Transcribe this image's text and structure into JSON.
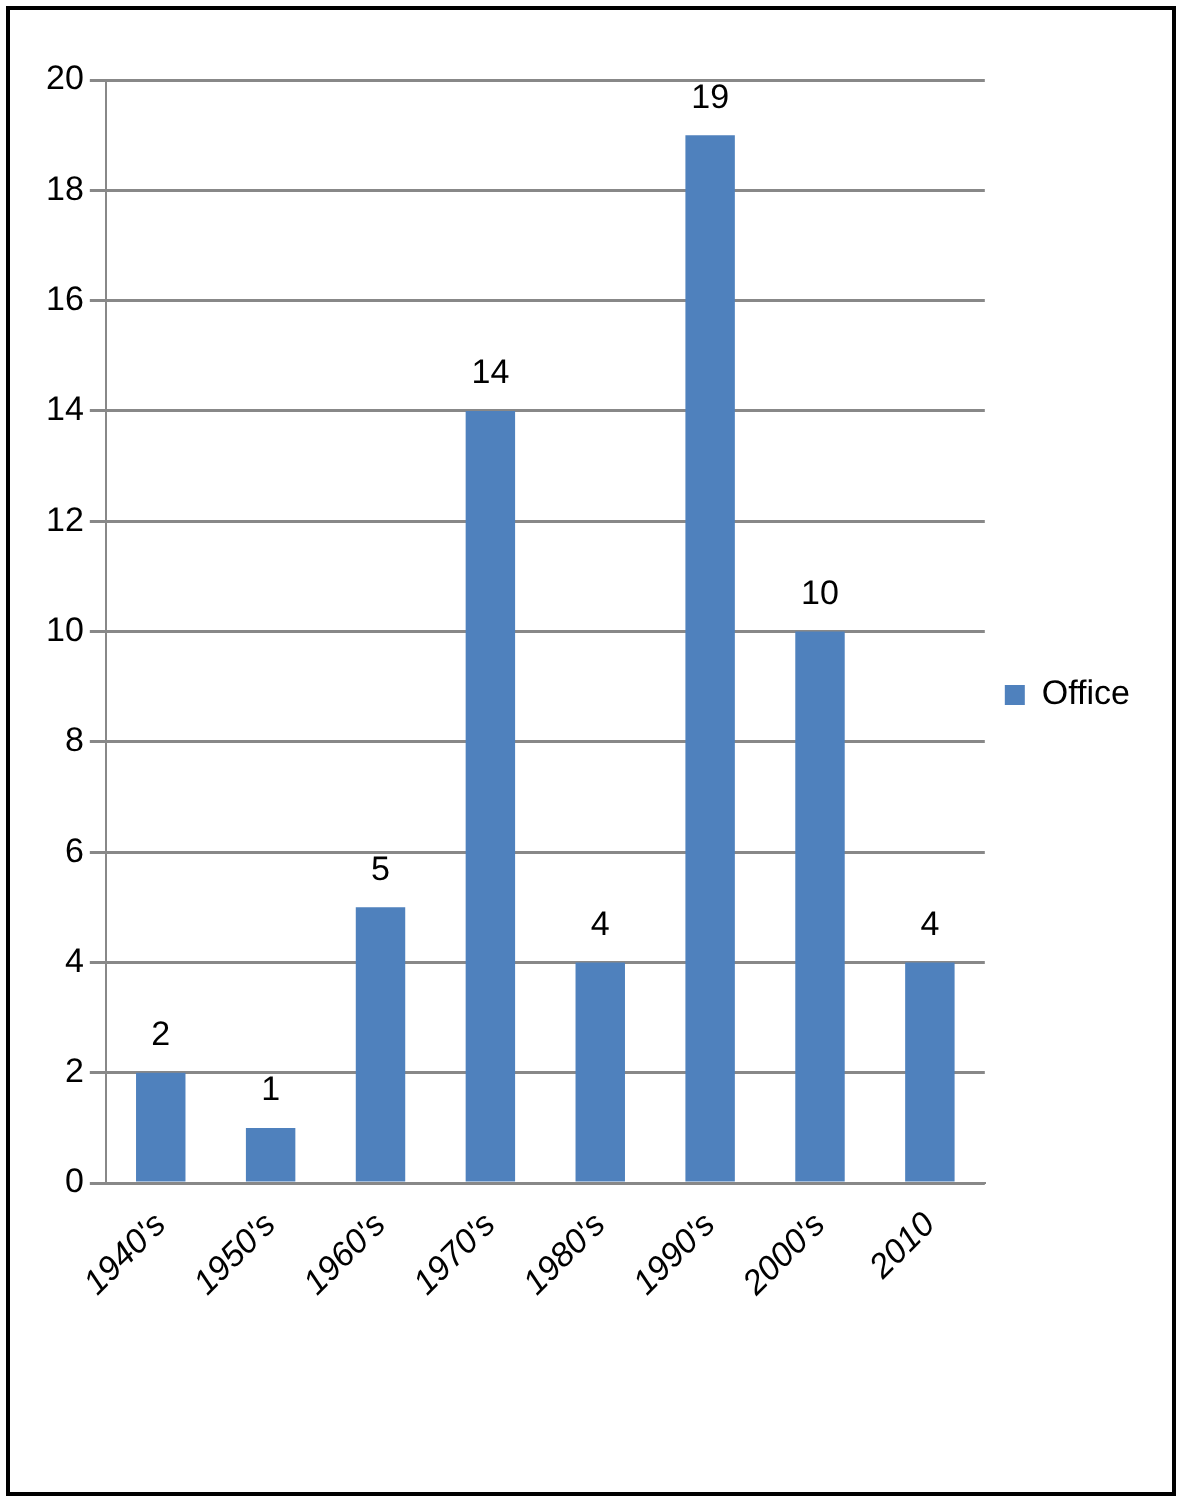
{
  "chart_data": {
    "type": "bar",
    "categories": [
      "1940's",
      "1950's",
      "1960's",
      "1970's",
      "1980's",
      "1990's",
      "2000's",
      "2010"
    ],
    "series": [
      {
        "name": "Office",
        "color": "#4f81bd",
        "values": [
          2,
          1,
          5,
          14,
          4,
          19,
          10,
          4
        ]
      }
    ],
    "ylim": [
      0,
      20
    ],
    "yticks": [
      0,
      2,
      4,
      6,
      8,
      10,
      12,
      14,
      16,
      18,
      20
    ],
    "grid": "y",
    "legend": "right",
    "data_labels": true
  }
}
